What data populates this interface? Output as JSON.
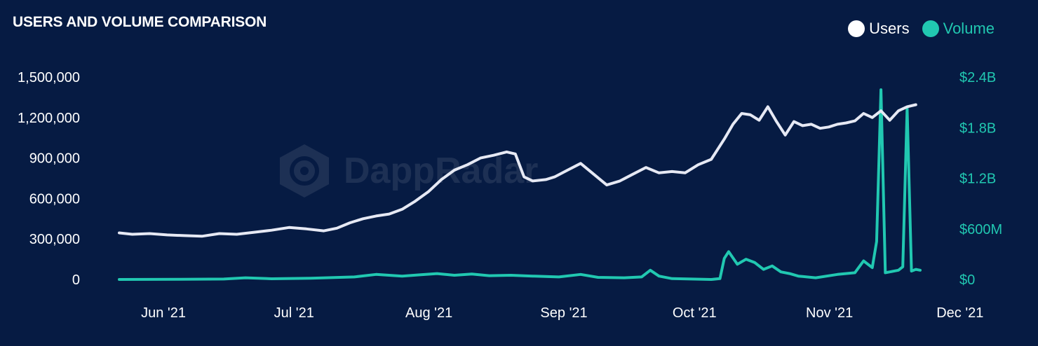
{
  "colors": {
    "background": "#061b43",
    "users": "#e6e9f4",
    "volume": "#21c8b1",
    "text": "#ffffff"
  },
  "watermark": {
    "text": "DappRadar"
  },
  "chart_data": {
    "type": "line",
    "title": "USERS AND VOLUME COMPARISON",
    "legend": {
      "position": "top-right",
      "entries": [
        "Users",
        "Volume"
      ]
    },
    "grid": false,
    "x_axis": {
      "type": "date",
      "range": [
        "2021-05-27",
        "2021-11-27"
      ],
      "tick_labels": [
        "Jun '21",
        "Jul '21",
        "Aug '21",
        "Sep '21",
        "Oct '21",
        "Nov '21",
        "Dec '21"
      ],
      "tick_dates": [
        "2021-06-01",
        "2021-07-01",
        "2021-08-01",
        "2021-09-01",
        "2021-10-01",
        "2021-11-01",
        "2021-12-01"
      ]
    },
    "y_left": {
      "range": [
        0,
        1500000
      ],
      "ticks": [
        0,
        300000,
        600000,
        900000,
        1200000,
        1500000
      ],
      "tick_labels": [
        "0",
        "300,000",
        "600,000",
        "900,000",
        "1,200,000",
        "1,500,000"
      ]
    },
    "y_right": {
      "range": [
        0,
        2400000000
      ],
      "ticks": [
        0,
        600000000,
        1200000000,
        1800000000,
        2400000000
      ],
      "tick_labels": [
        "$0",
        "$600M",
        "$1.2B",
        "$1.8B",
        "$2.4B"
      ]
    },
    "series": [
      {
        "name": "Users",
        "axis": "left",
        "color": "#e6e9f4",
        "points": [
          [
            "2021-05-27",
            345000
          ],
          [
            "2021-05-30",
            335000
          ],
          [
            "2021-06-03",
            340000
          ],
          [
            "2021-06-07",
            330000
          ],
          [
            "2021-06-11",
            325000
          ],
          [
            "2021-06-15",
            320000
          ],
          [
            "2021-06-19",
            340000
          ],
          [
            "2021-06-23",
            335000
          ],
          [
            "2021-06-27",
            350000
          ],
          [
            "2021-07-01",
            365000
          ],
          [
            "2021-07-05",
            385000
          ],
          [
            "2021-07-09",
            375000
          ],
          [
            "2021-07-13",
            360000
          ],
          [
            "2021-07-16",
            380000
          ],
          [
            "2021-07-19",
            420000
          ],
          [
            "2021-07-22",
            450000
          ],
          [
            "2021-07-25",
            470000
          ],
          [
            "2021-07-28",
            485000
          ],
          [
            "2021-07-31",
            520000
          ],
          [
            "2021-08-03",
            580000
          ],
          [
            "2021-08-06",
            650000
          ],
          [
            "2021-08-09",
            740000
          ],
          [
            "2021-08-12",
            810000
          ],
          [
            "2021-08-15",
            850000
          ],
          [
            "2021-08-18",
            900000
          ],
          [
            "2021-08-21",
            920000
          ],
          [
            "2021-08-24",
            945000
          ],
          [
            "2021-08-26",
            930000
          ],
          [
            "2021-08-28",
            760000
          ],
          [
            "2021-08-30",
            730000
          ],
          [
            "2021-09-02",
            740000
          ],
          [
            "2021-09-04",
            760000
          ],
          [
            "2021-09-07",
            810000
          ],
          [
            "2021-09-10",
            860000
          ],
          [
            "2021-09-13",
            780000
          ],
          [
            "2021-09-16",
            700000
          ],
          [
            "2021-09-19",
            730000
          ],
          [
            "2021-09-22",
            780000
          ],
          [
            "2021-09-25",
            830000
          ],
          [
            "2021-09-28",
            790000
          ],
          [
            "2021-10-01",
            800000
          ],
          [
            "2021-10-04",
            790000
          ],
          [
            "2021-10-07",
            850000
          ],
          [
            "2021-10-10",
            890000
          ],
          [
            "2021-10-13",
            1040000
          ],
          [
            "2021-10-15",
            1150000
          ],
          [
            "2021-10-17",
            1230000
          ],
          [
            "2021-10-19",
            1220000
          ],
          [
            "2021-10-21",
            1180000
          ],
          [
            "2021-10-23",
            1280000
          ],
          [
            "2021-10-25",
            1170000
          ],
          [
            "2021-10-27",
            1070000
          ],
          [
            "2021-10-29",
            1170000
          ],
          [
            "2021-10-31",
            1140000
          ],
          [
            "2021-11-02",
            1150000
          ],
          [
            "2021-11-04",
            1120000
          ],
          [
            "2021-11-06",
            1130000
          ],
          [
            "2021-11-08",
            1150000
          ],
          [
            "2021-11-10",
            1160000
          ],
          [
            "2021-11-12",
            1175000
          ],
          [
            "2021-11-14",
            1230000
          ],
          [
            "2021-11-16",
            1200000
          ],
          [
            "2021-11-18",
            1250000
          ],
          [
            "2021-11-20",
            1180000
          ],
          [
            "2021-11-22",
            1250000
          ],
          [
            "2021-11-24",
            1280000
          ],
          [
            "2021-11-26",
            1295000
          ]
        ]
      },
      {
        "name": "Volume",
        "axis": "right",
        "color": "#21c8b1",
        "points": [
          [
            "2021-05-27",
            0
          ],
          [
            "2021-06-10",
            2000000
          ],
          [
            "2021-06-20",
            5000000
          ],
          [
            "2021-06-25",
            20000000
          ],
          [
            "2021-07-01",
            8000000
          ],
          [
            "2021-07-10",
            15000000
          ],
          [
            "2021-07-20",
            30000000
          ],
          [
            "2021-07-25",
            60000000
          ],
          [
            "2021-07-31",
            40000000
          ],
          [
            "2021-08-04",
            55000000
          ],
          [
            "2021-08-08",
            70000000
          ],
          [
            "2021-08-12",
            50000000
          ],
          [
            "2021-08-16",
            65000000
          ],
          [
            "2021-08-20",
            45000000
          ],
          [
            "2021-08-25",
            50000000
          ],
          [
            "2021-08-30",
            40000000
          ],
          [
            "2021-09-05",
            30000000
          ],
          [
            "2021-09-10",
            60000000
          ],
          [
            "2021-09-14",
            25000000
          ],
          [
            "2021-09-20",
            20000000
          ],
          [
            "2021-09-24",
            30000000
          ],
          [
            "2021-09-26",
            110000000
          ],
          [
            "2021-09-28",
            40000000
          ],
          [
            "2021-10-01",
            10000000
          ],
          [
            "2021-10-10",
            0
          ],
          [
            "2021-10-12",
            10000000
          ],
          [
            "2021-10-13",
            250000000
          ],
          [
            "2021-10-14",
            330000000
          ],
          [
            "2021-10-16",
            180000000
          ],
          [
            "2021-10-18",
            240000000
          ],
          [
            "2021-10-20",
            200000000
          ],
          [
            "2021-10-22",
            120000000
          ],
          [
            "2021-10-24",
            160000000
          ],
          [
            "2021-10-26",
            90000000
          ],
          [
            "2021-10-28",
            70000000
          ],
          [
            "2021-10-30",
            40000000
          ],
          [
            "2021-11-03",
            20000000
          ],
          [
            "2021-11-08",
            60000000
          ],
          [
            "2021-11-12",
            80000000
          ],
          [
            "2021-11-14",
            220000000
          ],
          [
            "2021-11-16",
            140000000
          ],
          [
            "2021-11-17",
            450000000
          ],
          [
            "2021-11-18",
            2250000000
          ],
          [
            "2021-11-19",
            80000000
          ],
          [
            "2021-11-22",
            110000000
          ],
          [
            "2021-11-23",
            150000000
          ],
          [
            "2021-11-24",
            2030000000
          ],
          [
            "2021-11-25",
            100000000
          ],
          [
            "2021-11-26",
            120000000
          ],
          [
            "2021-11-27",
            110000000
          ]
        ]
      }
    ]
  }
}
